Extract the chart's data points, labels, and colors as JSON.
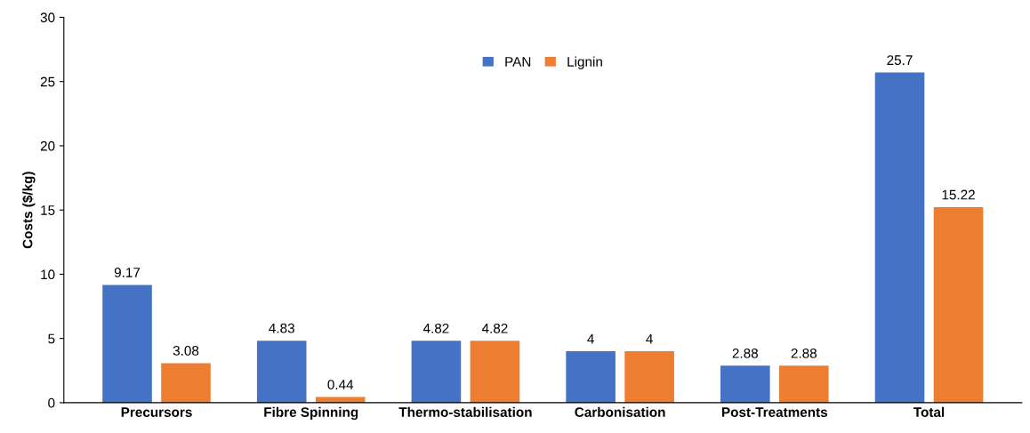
{
  "chart_data": {
    "type": "bar",
    "ylabel": "Costs ($/kg)",
    "categories": [
      "Precursors",
      "Fibre Spinning",
      "Thermo-stabilisation",
      "Carbonisation",
      "Post-Treatments",
      "Total"
    ],
    "series": [
      {
        "name": "PAN",
        "color": "#4472c4",
        "values": [
          9.17,
          4.83,
          4.82,
          4,
          2.88,
          25.7
        ]
      },
      {
        "name": "Lignin",
        "color": "#ed7d31",
        "values": [
          3.08,
          0.44,
          4.82,
          4,
          2.88,
          15.22
        ]
      }
    ],
    "ylim": [
      0,
      30
    ],
    "yticks": [
      0,
      5,
      10,
      15,
      20,
      25,
      30
    ],
    "grid": false,
    "legend": "top",
    "data_labels": true
  }
}
